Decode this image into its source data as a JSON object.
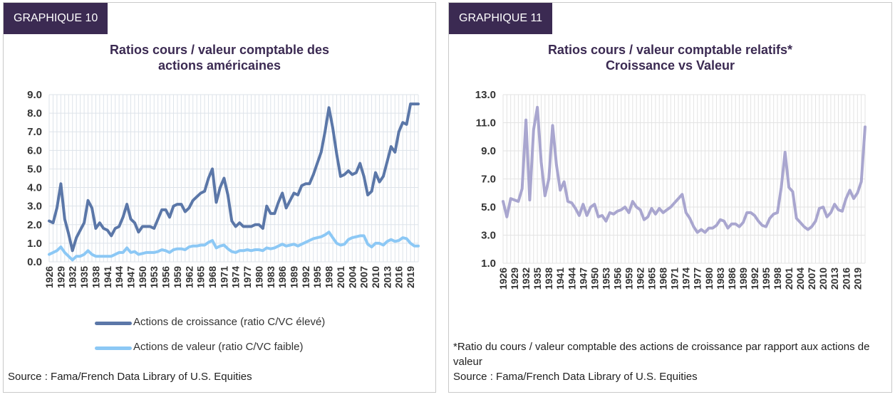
{
  "panels": [
    {
      "badge": "GRAPHIQUE 10",
      "title_line1": "Ratios cours / valeur comptable des",
      "title_line2": "actions américaines",
      "source": "Source : Fama/French Data Library of U.S. Equities"
    },
    {
      "badge": "GRAPHIQUE 11",
      "title_line1": "Ratios cours / valeur comptable relatifs*",
      "title_line2": "Croissance vs Valeur",
      "note": "*Ratio du cours / valeur comptable des actions de croissance par rapport aux actions de valeur",
      "source": "Source : Fama/French Data Library of U.S. Equities"
    }
  ],
  "chart_data": [
    {
      "type": "line",
      "title": "Ratios cours / valeur comptable des actions américaines",
      "ylim": [
        0,
        9
      ],
      "yticks": [
        "0.0",
        "1.0",
        "2.0",
        "3.0",
        "4.0",
        "5.0",
        "6.0",
        "7.0",
        "8.0",
        "9.0"
      ],
      "xlim": [
        1926,
        2021
      ],
      "xticks": [
        "1926",
        "1929",
        "1932",
        "1935",
        "1938",
        "1941",
        "1944",
        "1947",
        "1950",
        "1953",
        "1956",
        "1959",
        "1962",
        "1965",
        "1968",
        "1971",
        "1974",
        "1977",
        "1980",
        "1983",
        "1986",
        "1989",
        "1992",
        "1995",
        "1998",
        "2001",
        "2004",
        "2007",
        "2010",
        "2013",
        "2016",
        "2019"
      ],
      "grid": true,
      "legend": "bottom",
      "colors": {
        "growth": "#5b77a8",
        "value": "#8cc8f5",
        "grid": "#dde3ea"
      },
      "series": [
        {
          "name": "Actions de croissance (ratio C/VC élevé)",
          "x": [
            1926,
            1927,
            1928,
            1929,
            1930,
            1931,
            1932,
            1933,
            1934,
            1935,
            1936,
            1937,
            1938,
            1939,
            1940,
            1941,
            1942,
            1943,
            1944,
            1945,
            1946,
            1947,
            1948,
            1949,
            1950,
            1951,
            1952,
            1953,
            1954,
            1955,
            1956,
            1957,
            1958,
            1959,
            1960,
            1961,
            1962,
            1963,
            1964,
            1965,
            1966,
            1967,
            1968,
            1969,
            1970,
            1971,
            1972,
            1973,
            1974,
            1975,
            1976,
            1977,
            1978,
            1979,
            1980,
            1981,
            1982,
            1983,
            1984,
            1985,
            1986,
            1987,
            1988,
            1989,
            1990,
            1991,
            1992,
            1993,
            1994,
            1995,
            1996,
            1997,
            1998,
            1999,
            2000,
            2001,
            2002,
            2003,
            2004,
            2005,
            2006,
            2007,
            2008,
            2009,
            2010,
            2011,
            2012,
            2013,
            2014,
            2015,
            2016,
            2017,
            2018,
            2019,
            2020,
            2021
          ],
          "values": [
            2.2,
            2.1,
            2.9,
            4.2,
            2.3,
            1.5,
            0.6,
            1.3,
            1.7,
            2.1,
            3.3,
            2.9,
            1.8,
            2.1,
            1.8,
            1.7,
            1.4,
            1.8,
            1.9,
            2.4,
            3.1,
            2.3,
            2.1,
            1.6,
            1.9,
            1.9,
            1.9,
            1.8,
            2.3,
            2.8,
            2.8,
            2.4,
            3.0,
            3.1,
            3.1,
            2.7,
            2.9,
            3.3,
            3.5,
            3.7,
            3.8,
            4.5,
            5.0,
            3.2,
            4.0,
            4.5,
            3.6,
            2.2,
            1.9,
            2.1,
            1.9,
            1.9,
            1.9,
            2.0,
            2.0,
            1.8,
            3.0,
            2.6,
            2.6,
            3.2,
            3.7,
            2.9,
            3.3,
            3.7,
            3.6,
            4.1,
            4.2,
            4.2,
            4.7,
            5.3,
            5.9,
            7.0,
            8.3,
            7.2,
            5.8,
            4.6,
            4.7,
            4.9,
            4.7,
            4.8,
            5.3,
            4.6,
            3.6,
            3.8,
            4.8,
            4.3,
            4.6,
            5.4,
            6.2,
            5.9,
            7.0,
            7.5,
            7.4,
            8.5,
            8.5,
            8.5
          ]
        },
        {
          "name": "Actions de valeur (ratio C/VC faible)",
          "x": [
            1926,
            1927,
            1928,
            1929,
            1930,
            1931,
            1932,
            1933,
            1934,
            1935,
            1936,
            1937,
            1938,
            1939,
            1940,
            1941,
            1942,
            1943,
            1944,
            1945,
            1946,
            1947,
            1948,
            1949,
            1950,
            1951,
            1952,
            1953,
            1954,
            1955,
            1956,
            1957,
            1958,
            1959,
            1960,
            1961,
            1962,
            1963,
            1964,
            1965,
            1966,
            1967,
            1968,
            1969,
            1970,
            1971,
            1972,
            1973,
            1974,
            1975,
            1976,
            1977,
            1978,
            1979,
            1980,
            1981,
            1982,
            1983,
            1984,
            1985,
            1986,
            1987,
            1988,
            1989,
            1990,
            1991,
            1992,
            1993,
            1994,
            1995,
            1996,
            1997,
            1998,
            1999,
            2000,
            2001,
            2002,
            2003,
            2004,
            2005,
            2006,
            2007,
            2008,
            2009,
            2010,
            2011,
            2012,
            2013,
            2014,
            2015,
            2016,
            2017,
            2018,
            2019,
            2020,
            2021
          ],
          "values": [
            0.4,
            0.5,
            0.6,
            0.8,
            0.5,
            0.3,
            0.1,
            0.3,
            0.3,
            0.4,
            0.6,
            0.4,
            0.3,
            0.3,
            0.3,
            0.3,
            0.3,
            0.4,
            0.5,
            0.5,
            0.75,
            0.5,
            0.55,
            0.4,
            0.45,
            0.5,
            0.5,
            0.5,
            0.55,
            0.65,
            0.6,
            0.5,
            0.65,
            0.7,
            0.7,
            0.65,
            0.8,
            0.85,
            0.85,
            0.9,
            0.9,
            1.05,
            1.15,
            0.75,
            0.85,
            0.9,
            0.7,
            0.55,
            0.5,
            0.6,
            0.6,
            0.65,
            0.6,
            0.65,
            0.65,
            0.6,
            0.75,
            0.7,
            0.75,
            0.85,
            0.95,
            0.85,
            0.9,
            0.95,
            0.85,
            0.95,
            1.05,
            1.15,
            1.25,
            1.3,
            1.35,
            1.45,
            1.6,
            1.3,
            1.0,
            0.9,
            0.95,
            1.2,
            1.3,
            1.35,
            1.4,
            1.4,
            0.95,
            0.8,
            1.0,
            1.0,
            0.9,
            1.1,
            1.2,
            1.1,
            1.15,
            1.3,
            1.25,
            1.0,
            0.85,
            0.85
          ]
        }
      ]
    },
    {
      "type": "line",
      "title": "Ratios cours / valeur comptable relatifs* Croissance vs Valeur",
      "ylim": [
        1,
        13
      ],
      "yticks": [
        "1.0",
        "3.0",
        "5.0",
        "7.0",
        "9.0",
        "11.0",
        "13.0"
      ],
      "xlim": [
        1926,
        2021
      ],
      "xticks": [
        "1926",
        "1929",
        "1932",
        "1935",
        "1938",
        "1941",
        "1944",
        "1947",
        "1950",
        "1953",
        "1956",
        "1959",
        "1962",
        "1965",
        "1968",
        "1971",
        "1974",
        "1977",
        "1980",
        "1983",
        "1986",
        "1989",
        "1992",
        "1995",
        "1998",
        "2001",
        "2004",
        "2007",
        "2010",
        "2013",
        "2016",
        "2019"
      ],
      "grid": true,
      "legend": "none",
      "colors": {
        "ratio": "#a9a6cf",
        "grid": "#e3e3e3"
      },
      "series": [
        {
          "name": "",
          "x": [
            1926,
            1927,
            1928,
            1929,
            1930,
            1931,
            1932,
            1933,
            1934,
            1935,
            1936,
            1937,
            1938,
            1939,
            1940,
            1941,
            1942,
            1943,
            1944,
            1945,
            1946,
            1947,
            1948,
            1949,
            1950,
            1951,
            1952,
            1953,
            1954,
            1955,
            1956,
            1957,
            1958,
            1959,
            1960,
            1961,
            1962,
            1963,
            1964,
            1965,
            1966,
            1967,
            1968,
            1969,
            1970,
            1971,
            1972,
            1973,
            1974,
            1975,
            1976,
            1977,
            1978,
            1979,
            1980,
            1981,
            1982,
            1983,
            1984,
            1985,
            1986,
            1987,
            1988,
            1989,
            1990,
            1991,
            1992,
            1993,
            1994,
            1995,
            1996,
            1997,
            1998,
            1999,
            2000,
            2001,
            2002,
            2003,
            2004,
            2005,
            2006,
            2007,
            2008,
            2009,
            2010,
            2011,
            2012,
            2013,
            2014,
            2015,
            2016,
            2017,
            2018,
            2019,
            2020,
            2021
          ],
          "values": [
            5.4,
            4.3,
            5.6,
            5.5,
            5.4,
            6.3,
            11.2,
            5.5,
            10.5,
            12.1,
            8.2,
            5.8,
            7.0,
            10.8,
            8.0,
            6.2,
            6.8,
            5.4,
            5.3,
            4.9,
            4.4,
            5.2,
            4.4,
            5.0,
            5.2,
            4.3,
            4.4,
            4.0,
            4.6,
            4.5,
            4.7,
            4.8,
            5.0,
            4.6,
            5.4,
            5.0,
            4.8,
            4.1,
            4.3,
            4.9,
            4.5,
            4.9,
            4.6,
            4.8,
            5.0,
            5.3,
            5.6,
            5.9,
            4.6,
            4.2,
            3.6,
            3.2,
            3.4,
            3.2,
            3.5,
            3.5,
            3.7,
            4.1,
            4.0,
            3.5,
            3.8,
            3.8,
            3.6,
            3.9,
            4.6,
            4.6,
            4.4,
            4.0,
            3.7,
            3.6,
            4.2,
            4.5,
            4.6,
            6.4,
            8.9,
            6.4,
            6.1,
            4.2,
            3.9,
            3.6,
            3.4,
            3.6,
            4.0,
            4.9,
            5.0,
            4.3,
            4.6,
            5.2,
            4.8,
            4.7,
            5.6,
            6.2,
            5.6,
            6.0,
            6.8,
            10.7
          ]
        }
      ]
    }
  ]
}
